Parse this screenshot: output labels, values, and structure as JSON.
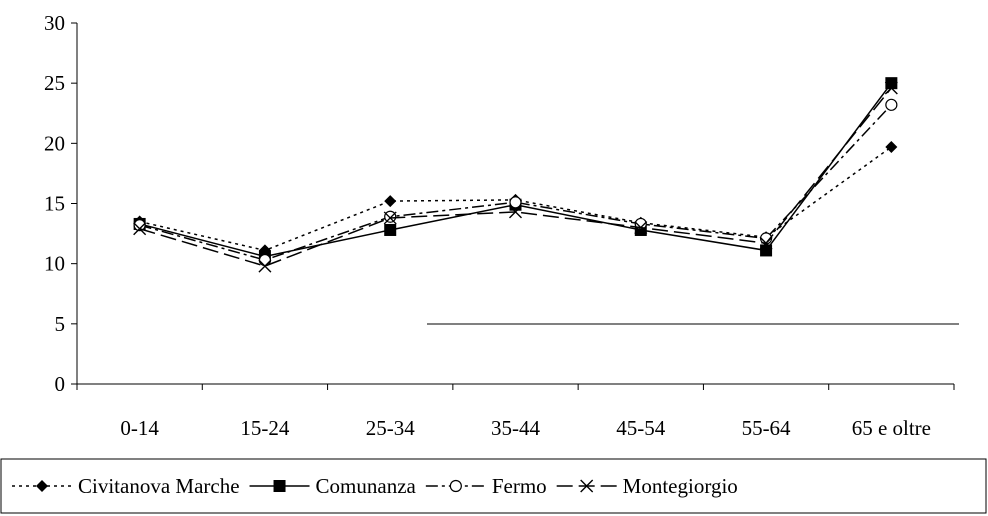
{
  "chart_data": {
    "type": "line",
    "title": "",
    "xlabel": "",
    "ylabel": "",
    "categories": [
      "0-14",
      "15-24",
      "25-34",
      "35-44",
      "45-54",
      "55-64",
      "65 e oltre"
    ],
    "ylim": [
      0,
      30
    ],
    "yticks": [
      0,
      5,
      10,
      15,
      20,
      25,
      30
    ],
    "grid": false,
    "legend_position": "bottom",
    "series": [
      {
        "name": "Civitanova Marche",
        "marker": "diamond",
        "line_style": "dotted",
        "color": "#000000",
        "values": [
          13.5,
          11.1,
          15.2,
          15.3,
          13.4,
          12.2,
          19.7
        ]
      },
      {
        "name": "Comunanza",
        "marker": "square",
        "line_style": "solid",
        "color": "#000000",
        "values": [
          13.3,
          10.6,
          12.8,
          14.9,
          12.8,
          11.1,
          25.0
        ]
      },
      {
        "name": "Fermo",
        "marker": "circle",
        "line_style": "dash-dot",
        "color": "#000000",
        "values": [
          13.2,
          10.3,
          13.9,
          15.1,
          13.3,
          12.1,
          23.2
        ]
      },
      {
        "name": "Montegiorgio",
        "marker": "x",
        "line_style": "long-dash",
        "color": "#000000",
        "values": [
          12.9,
          9.8,
          13.8,
          14.3,
          13.0,
          11.7,
          24.6
        ]
      }
    ]
  }
}
